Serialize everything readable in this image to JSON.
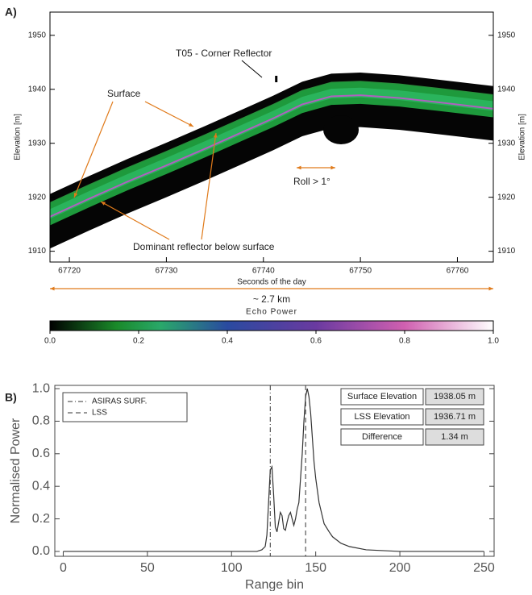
{
  "chart_data": [
    {
      "type": "echogram",
      "panel_label": "A)",
      "xlabel": "Seconds of the day",
      "ylabel": "Elevation [m]",
      "xlim": [
        67718,
        67763.7
      ],
      "ylim": [
        1908,
        1954.3
      ],
      "xticks": [
        67720,
        67730,
        67740,
        67750,
        67760
      ],
      "yticks": [
        1910,
        1920,
        1930,
        1940,
        1950
      ],
      "surface": {
        "x": [
          67718,
          67722,
          67726,
          67730,
          67734,
          67738,
          67741,
          67744,
          67747,
          67750,
          67754,
          67758,
          67763.7
        ],
        "values": [
          1919,
          1922.3,
          1925.5,
          1928.5,
          1931.6,
          1934.8,
          1937.2,
          1939.8,
          1941.3,
          1941.5,
          1941,
          1940.2,
          1939
        ]
      },
      "annotations": [
        "T05 - Corner Reflector",
        "Surface",
        "Roll > 1°",
        "Dominant reflector below surface"
      ],
      "scale_label": "~ 2.7 km"
    },
    {
      "type": "colorbar",
      "title": "Echo Power",
      "lim": [
        0,
        1
      ],
      "ticks": [
        {
          "value": 0,
          "label": "0.0"
        },
        0.2,
        0.4,
        0.6,
        0.8,
        {
          "value": 1,
          "label": "1.0"
        }
      ]
    },
    {
      "type": "line",
      "panel_label": "B)",
      "xlabel": "Range bin",
      "ylabel": "Normalised Power",
      "xlim": [
        -5,
        256
      ],
      "ylim": [
        -0.03,
        1.02
      ],
      "xticks": [
        0,
        50,
        100,
        150,
        200,
        250
      ],
      "yticks": [
        {
          "value": 0,
          "label": "0.0"
        },
        0.2,
        0.4,
        0.6,
        0.8,
        {
          "value": 1,
          "label": "1.0"
        }
      ],
      "series": [
        {
          "color": "#333333",
          "x": [
            0,
            115,
            118,
            120,
            121,
            122,
            123,
            124,
            125,
            126,
            127,
            128,
            129,
            130,
            131,
            132,
            133,
            134,
            135,
            136,
            137,
            138,
            139,
            140,
            141,
            142,
            143,
            144,
            145,
            146,
            147,
            148,
            149,
            150,
            152,
            155,
            158,
            160,
            165,
            170,
            180,
            200,
            250
          ],
          "values": [
            0,
            0,
            0.01,
            0.03,
            0.1,
            0.3,
            0.5,
            0.52,
            0.35,
            0.15,
            0.12,
            0.18,
            0.24,
            0.22,
            0.14,
            0.13,
            0.18,
            0.22,
            0.24,
            0.2,
            0.16,
            0.2,
            0.26,
            0.3,
            0.45,
            0.6,
            0.8,
            0.95,
            1.0,
            0.95,
            0.85,
            0.7,
            0.55,
            0.45,
            0.3,
            0.17,
            0.12,
            0.09,
            0.05,
            0.03,
            0.01,
            0,
            0
          ]
        }
      ],
      "markers": [
        {
          "name": "ASIRAS SURF.",
          "x": 123,
          "style": "dashdot"
        },
        {
          "name": "LSS",
          "x": 144,
          "style": "dashed"
        }
      ],
      "table": [
        [
          "Surface Elevation",
          "1938.05 m"
        ],
        [
          "LSS Elevation",
          "1936.71 m"
        ],
        [
          "Difference",
          "1.34 m"
        ]
      ]
    }
  ]
}
